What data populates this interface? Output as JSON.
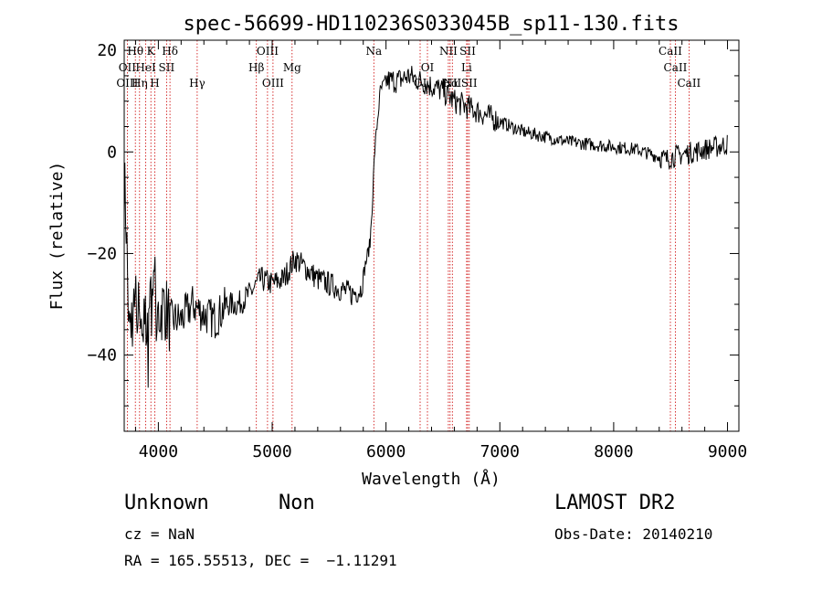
{
  "chart_data": {
    "type": "line",
    "title": "spec-56699-HD110236S033045B_sp11-130.fits",
    "xlabel": "Wavelength (Å)",
    "ylabel": "Flux (relative)",
    "xlim": [
      3700,
      9100
    ],
    "ylim": [
      -55,
      22
    ],
    "xticks": [
      4000,
      5000,
      6000,
      7000,
      8000,
      9000
    ],
    "xtick_labels": [
      "4000",
      "5000",
      "6000",
      "7000",
      "8000",
      "9000"
    ],
    "yticks": [
      -40,
      -20,
      0,
      20
    ],
    "ytick_labels": [
      "−40",
      "−20",
      "0",
      "20"
    ],
    "line_color": "#000000",
    "marker_line_color": "#cc0000",
    "spectrum_anchors": {
      "x": [
        3700,
        3720,
        3740,
        3760,
        3800,
        3850,
        3900,
        3950,
        4000,
        4050,
        4100,
        4200,
        4300,
        4400,
        4500,
        4600,
        4700,
        4800,
        4900,
        5000,
        5100,
        5200,
        5300,
        5400,
        5500,
        5600,
        5700,
        5780,
        5820,
        5860,
        5880,
        5900,
        5920,
        5950,
        6000,
        6100,
        6200,
        6300,
        6400,
        6500,
        6600,
        6700,
        6800,
        6900,
        7000,
        7200,
        7400,
        7600,
        7800,
        8000,
        8200,
        8400,
        8460,
        8500,
        8600,
        8700,
        8800,
        8900,
        9000
      ],
      "y": [
        -5,
        -15,
        -35,
        -33,
        -30,
        -33,
        -35,
        -28,
        -32,
        -30,
        -33,
        -33,
        -30,
        -32,
        -33,
        -30,
        -30,
        -28,
        -25,
        -26,
        -25,
        -21,
        -23,
        -25,
        -26,
        -27,
        -28,
        -27,
        -22,
        -18,
        -10,
        0,
        5,
        12,
        14,
        14,
        15,
        14,
        13,
        12,
        10,
        9,
        8,
        7,
        6,
        4,
        3,
        2,
        1.5,
        1,
        0.5,
        -1,
        -1.5,
        -1,
        -0.5,
        0,
        0.5,
        1,
        1.5
      ]
    },
    "spectral_lines": [
      {
        "label": "Hθ",
        "x": 3798,
        "row": 0
      },
      {
        "label": "K",
        "x": 3934,
        "row": 0
      },
      {
        "label": "Hδ",
        "x": 4102,
        "row": 0
      },
      {
        "label": "OII",
        "x": 3727,
        "row": 1
      },
      {
        "label": "HeI",
        "x": 3889,
        "row": 1
      },
      {
        "label": "SII",
        "x": 4072,
        "row": 1
      },
      {
        "label": "OIII",
        "x": 3727,
        "row": 2
      },
      {
        "label": "Hη",
        "x": 3835,
        "row": 2
      },
      {
        "label": "H",
        "x": 3969,
        "row": 2
      },
      {
        "label": "Hγ",
        "x": 4341,
        "row": 2
      },
      {
        "label": "OIII",
        "x": 4959,
        "row": 0
      },
      {
        "label": "Hβ",
        "x": 4861,
        "row": 1
      },
      {
        "label": "Mg",
        "x": 5175,
        "row": 1
      },
      {
        "label": "OIII",
        "x": 5007,
        "row": 2
      },
      {
        "label": "Na",
        "x": 5893,
        "row": 0
      },
      {
        "label": "OI",
        "x": 6300,
        "row": 2
      },
      {
        "label": "OI",
        "x": 6364,
        "row": 1
      },
      {
        "label": "NII",
        "x": 6548,
        "row": 0
      },
      {
        "label": "NII",
        "x": 6583,
        "row": 2
      },
      {
        "label": "Hα",
        "x": 6563,
        "row": 2
      },
      {
        "label": "SII",
        "x": 6717,
        "row": 0
      },
      {
        "label": "Li",
        "x": 6708,
        "row": 1
      },
      {
        "label": "SII",
        "x": 6731,
        "row": 2
      },
      {
        "label": "CaII",
        "x": 8498,
        "row": 0
      },
      {
        "label": "CaII",
        "x": 8542,
        "row": 1
      },
      {
        "label": "CaII",
        "x": 8662,
        "row": 2
      }
    ]
  },
  "info": {
    "object_type": "Unknown",
    "subclass": "Non",
    "survey": "LAMOST DR2",
    "redshift": "cz = NaN",
    "obs_date": "Obs-Date: 20140210",
    "coords": "RA = 165.55513, DEC =  −1.11291"
  }
}
